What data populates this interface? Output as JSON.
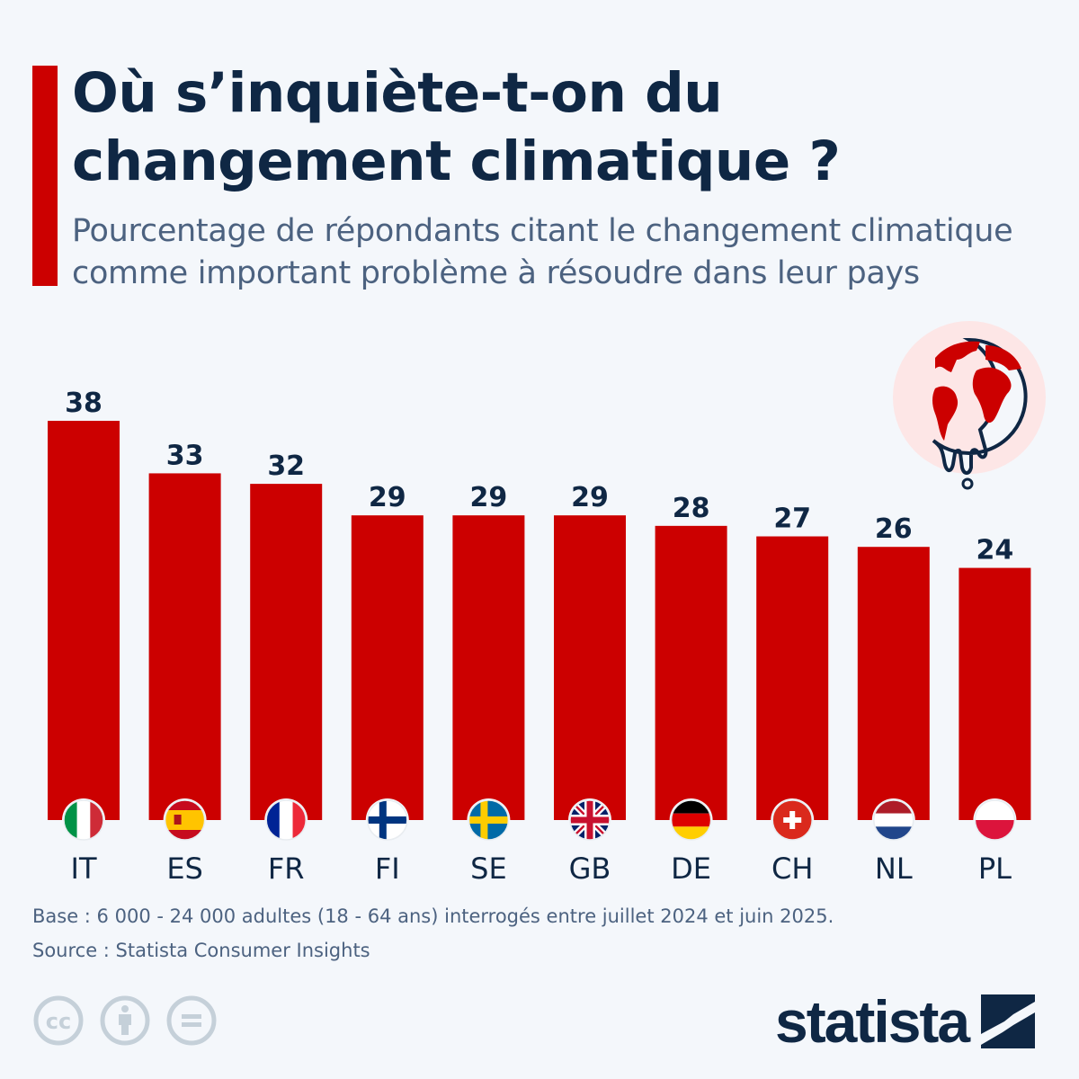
{
  "header": {
    "title": "Où s’inquiète-t-on du changement climatique ?",
    "subtitle": "Pourcentage de répondants citant le changement climatique comme important problème à résoudre dans leur pays"
  },
  "colors": {
    "accent": "#cc0000",
    "title": "#0f2744",
    "text": "#4c6280",
    "background": "#f4f7fb"
  },
  "chart_data": {
    "type": "bar",
    "categories": [
      "IT",
      "ES",
      "FR",
      "FI",
      "SE",
      "GB",
      "DE",
      "CH",
      "NL",
      "PL"
    ],
    "values": [
      38,
      33,
      32,
      29,
      29,
      29,
      28,
      27,
      26,
      24
    ],
    "unit": "%",
    "ylim": [
      0,
      38
    ],
    "grid": false,
    "bar_color": "#cc0000",
    "category_icons": [
      "flag-italy",
      "flag-spain",
      "flag-france",
      "flag-finland",
      "flag-sweden",
      "flag-uk",
      "flag-germany",
      "flag-switzerland",
      "flag-netherlands",
      "flag-poland"
    ]
  },
  "decor": {
    "icon": "melting-globe-icon"
  },
  "footer": {
    "base": "Base : 6 000 - 24 000 adultes (18 - 64 ans) interrogés entre juillet 2024 et juin 2025.",
    "source": "Source : Statista Consumer Insights",
    "license_icons": [
      "cc-icon",
      "attribution-icon",
      "no-derivatives-icon"
    ],
    "brand": "statista"
  }
}
